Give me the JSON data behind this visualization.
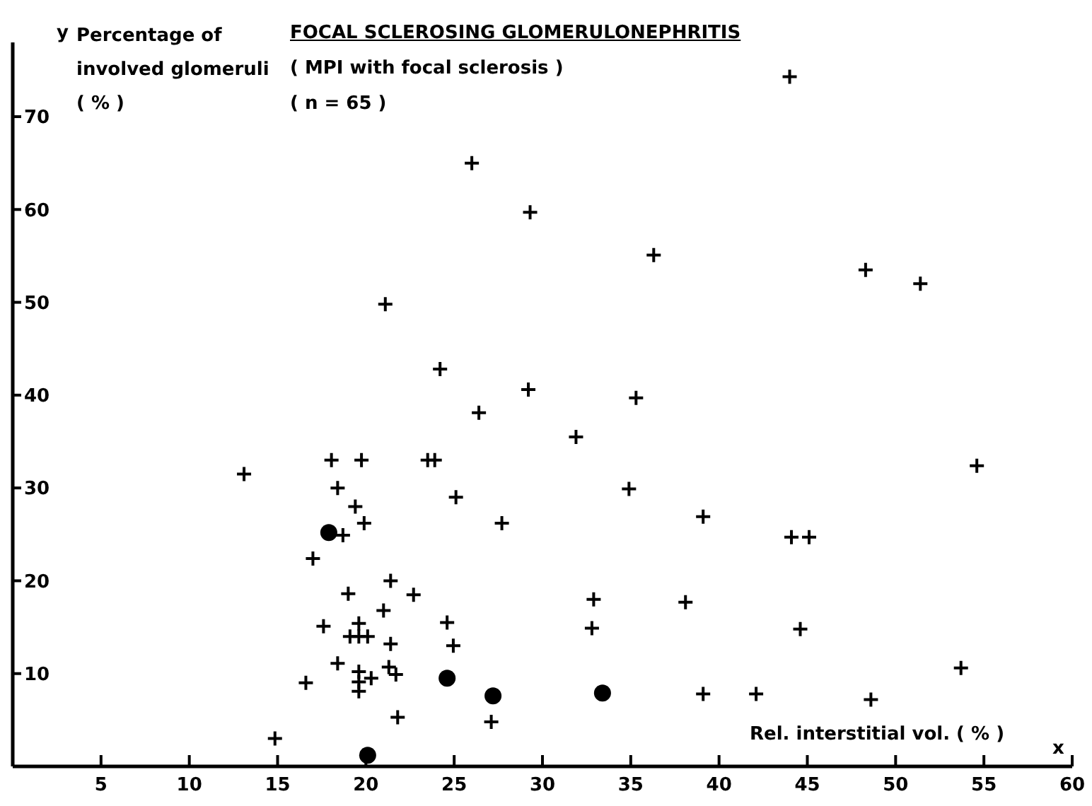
{
  "chart_data": {
    "type": "scatter",
    "title": "FOCAL SCLEROSING GLOMERULONEPHRITIS",
    "subtitle": "( MPI with focal sclerosis )",
    "xlabel": "Rel. interstitial vol. ( % )",
    "ylabel": "Percentage of\ninvolved glomeruli\n( % )",
    "annotations": [
      "( n = 65 )",
      "y",
      "x"
    ],
    "xlim": [
      0,
      60
    ],
    "xticks": [
      5,
      10,
      15,
      20,
      25,
      30,
      35,
      40,
      45,
      50,
      55,
      60
    ],
    "ylim": [
      0,
      78
    ],
    "yticks": [
      10,
      20,
      30,
      40,
      50,
      60,
      70
    ],
    "grid": false,
    "legend": false,
    "series": [
      {
        "color": "#000000",
        "marker": "cross",
        "x": [
          13.1,
          18.05,
          19.75,
          23.5,
          23.9,
          26.4,
          18.4,
          25.1,
          19.4,
          19.9,
          27.7,
          18.7,
          17.0,
          21.4,
          19.0,
          22.7,
          21.0,
          17.6,
          19.6,
          19.1,
          19.6,
          20.1,
          24.6,
          24.95,
          21.4,
          18.4,
          21.3,
          19.6,
          21.7,
          20.3,
          19.6,
          19.6,
          16.6,
          27.1,
          21.8,
          14.85,
          29.2,
          35.3,
          31.9,
          54.6,
          34.9,
          39.1,
          44.1,
          45.1,
          32.9,
          38.1,
          32.8,
          44.6,
          53.7,
          39.1,
          42.1,
          48.6,
          29.3,
          36.3,
          21.1,
          24.2,
          26.0,
          44.0,
          48.3,
          51.4
        ],
        "values": [
          31.5,
          33,
          33,
          33,
          33,
          38.1,
          30,
          29,
          28,
          26.2,
          26.2,
          24.9,
          22.4,
          20,
          18.6,
          18.5,
          16.8,
          15.1,
          15.4,
          14,
          14,
          14,
          15.5,
          13,
          13.2,
          11.1,
          10.7,
          10.2,
          9.9,
          9.5,
          9.1,
          8.1,
          9.0,
          4.8,
          5.3,
          3.0,
          40.6,
          39.7,
          35.5,
          32.4,
          29.9,
          26.9,
          24.7,
          24.7,
          18.0,
          17.7,
          14.9,
          14.8,
          10.6,
          7.8,
          7.8,
          7.2,
          59.7,
          55.1,
          49.8,
          42.8,
          65.0,
          74.3,
          53.5,
          52.0
        ]
      },
      {
        "color": "#000000",
        "marker": "circle",
        "x": [
          17.9,
          24.6,
          27.2,
          33.4,
          20.1
        ],
        "values": [
          25.2,
          9.5,
          7.6,
          7.9,
          1.2
        ]
      }
    ]
  }
}
